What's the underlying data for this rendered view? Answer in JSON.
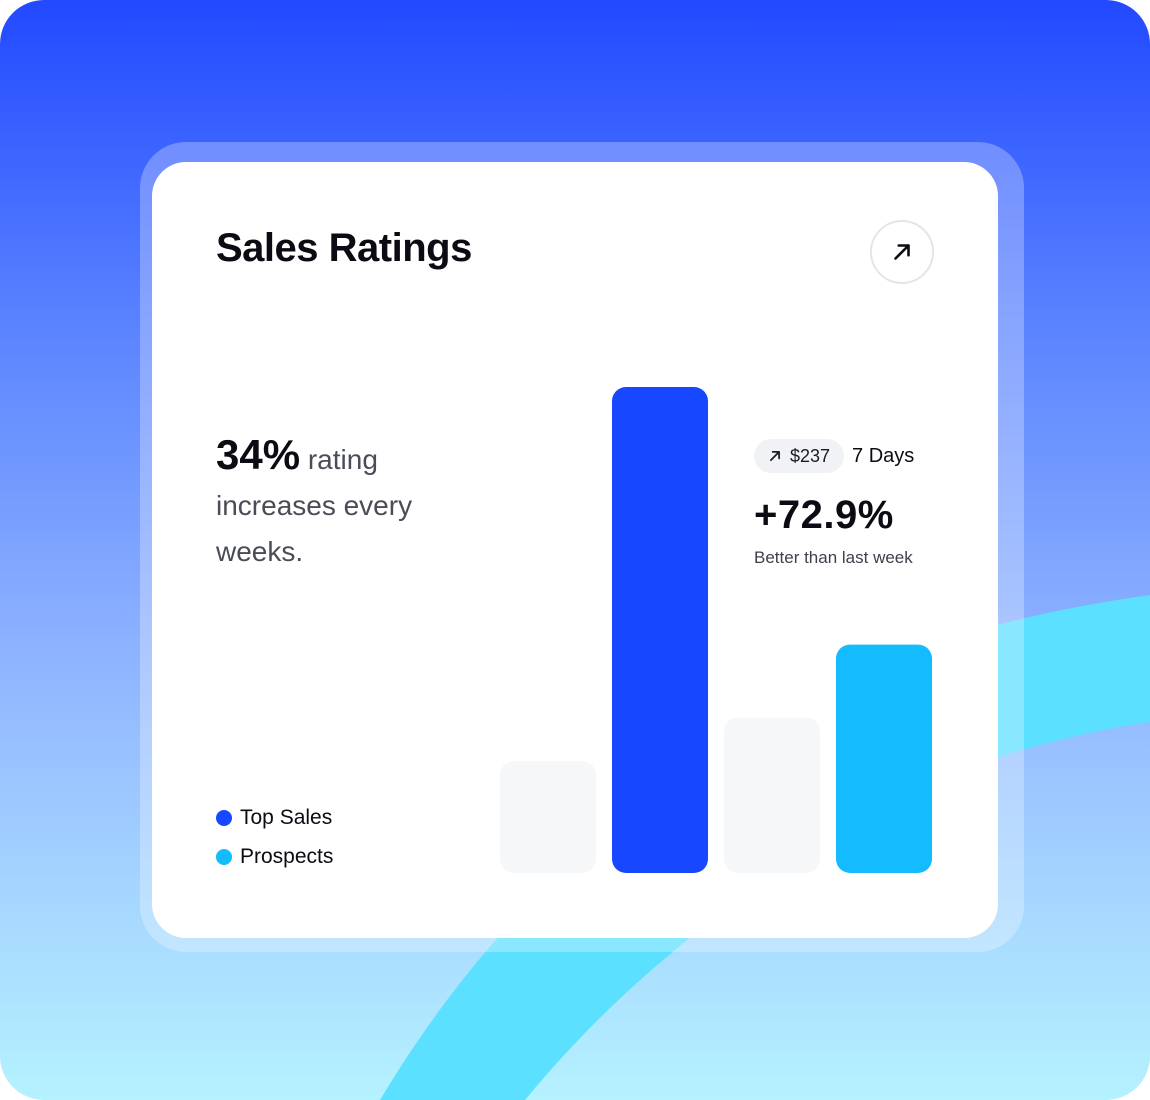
{
  "colors": {
    "top_sales": "#1747ff",
    "prospects": "#14bbff",
    "bar_muted": "#f6f7f9"
  },
  "header": {
    "title": "Sales Ratings",
    "open_icon": "arrow-up-right-icon"
  },
  "summary": {
    "percent": "34%",
    "text": "rating increases every weeks."
  },
  "stats": {
    "change_icon": "arrow-up-right-icon",
    "amount": "$237",
    "period": "7 Days",
    "change_percent": "+72.9%",
    "caption": "Better than last week"
  },
  "legend": [
    {
      "label": "Top Sales",
      "color": "#1747ff"
    },
    {
      "label": "Prospects",
      "color": "#14bbff"
    }
  ],
  "chart_data": {
    "type": "bar",
    "categories": [
      "",
      "",
      "",
      ""
    ],
    "values": [
      23,
      100,
      32,
      47
    ],
    "ylim": [
      0,
      100
    ],
    "bar_colors": [
      "#f6f7f9",
      "#1747ff",
      "#f6f7f9",
      "#14bbff"
    ],
    "grid": false,
    "axes_visible": false
  }
}
